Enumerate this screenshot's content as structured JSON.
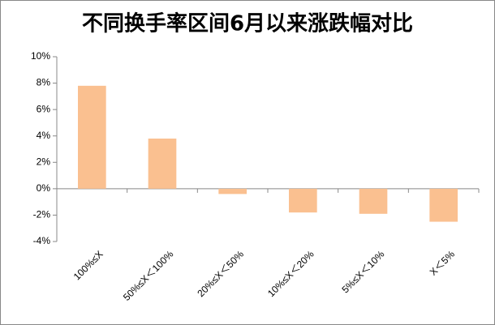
{
  "chart_data": {
    "type": "bar",
    "title": "不同换手率区间6月以来涨跌幅对比",
    "categories": [
      "100%≤X",
      "50%≤X＜100%",
      "20%≤X＜50%",
      "10%≤X＜20%",
      "5%≤X＜10%",
      "X＜5%"
    ],
    "values": [
      7.8,
      3.8,
      -0.4,
      -1.8,
      -1.9,
      -2.5
    ],
    "color": "#fac090",
    "ylim": [
      -4,
      10
    ],
    "yticks": [
      {
        "value": -4,
        "label": "-4%"
      },
      {
        "value": -2,
        "label": "-2%"
      },
      {
        "value": 0,
        "label": "0%"
      },
      {
        "value": 2,
        "label": "2%"
      },
      {
        "value": 4,
        "label": "4%"
      },
      {
        "value": 6,
        "label": "6%"
      },
      {
        "value": 8,
        "label": "8%"
      },
      {
        "value": 10,
        "label": "10%"
      }
    ],
    "grid": false
  }
}
